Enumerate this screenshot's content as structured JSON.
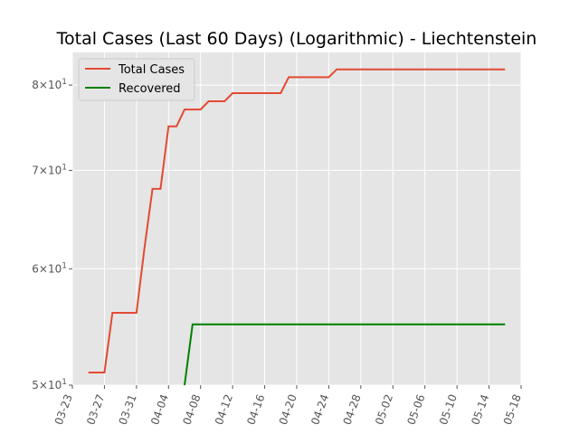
{
  "chart_data": {
    "type": "line",
    "title": "Total Cases (Last 60 Days) (Logarithmic) - Liechtenstein",
    "xlabel": "",
    "ylabel": "",
    "y_scale": "log",
    "ylim": [
      50,
      84.2
    ],
    "xlim": [
      "2020-03-23",
      "2020-05-18"
    ],
    "x_ticks": [
      "03-23",
      "03-27",
      "03-31",
      "04-04",
      "04-08",
      "04-12",
      "04-16",
      "04-20",
      "04-24",
      "04-28",
      "05-02",
      "05-06",
      "05-10",
      "05-14",
      "05-18"
    ],
    "y_ticks": [
      {
        "value": 50,
        "mantissa": "5",
        "base": "10",
        "exp": "1"
      },
      {
        "value": 60,
        "mantissa": "6",
        "base": "10",
        "exp": "1"
      },
      {
        "value": 70,
        "mantissa": "7",
        "base": "10",
        "exp": "1"
      },
      {
        "value": 80,
        "mantissa": "8",
        "base": "10",
        "exp": "1"
      }
    ],
    "grid": true,
    "legend_position": "top-left",
    "background": "#e5e5e5",
    "series": [
      {
        "name": "Total Cases",
        "color": "#e24a33",
        "points": [
          [
            "2020-03-25",
            51
          ],
          [
            "2020-03-26",
            51
          ],
          [
            "2020-03-27",
            51
          ],
          [
            "2020-03-28",
            56
          ],
          [
            "2020-03-29",
            56
          ],
          [
            "2020-03-30",
            56
          ],
          [
            "2020-03-31",
            56
          ],
          [
            "2020-04-01",
            62
          ],
          [
            "2020-04-02",
            68
          ],
          [
            "2020-04-03",
            68
          ],
          [
            "2020-04-04",
            75
          ],
          [
            "2020-04-05",
            75
          ],
          [
            "2020-04-06",
            77
          ],
          [
            "2020-04-07",
            77
          ],
          [
            "2020-04-08",
            77
          ],
          [
            "2020-04-09",
            78
          ],
          [
            "2020-04-10",
            78
          ],
          [
            "2020-04-11",
            78
          ],
          [
            "2020-04-12",
            79
          ],
          [
            "2020-04-13",
            79
          ],
          [
            "2020-04-14",
            79
          ],
          [
            "2020-04-15",
            79
          ],
          [
            "2020-04-16",
            79
          ],
          [
            "2020-04-17",
            79
          ],
          [
            "2020-04-18",
            79
          ],
          [
            "2020-04-19",
            81
          ],
          [
            "2020-04-20",
            81
          ],
          [
            "2020-04-21",
            81
          ],
          [
            "2020-04-22",
            81
          ],
          [
            "2020-04-23",
            81
          ],
          [
            "2020-04-24",
            81
          ],
          [
            "2020-04-25",
            82
          ],
          [
            "2020-04-26",
            82
          ],
          [
            "2020-04-27",
            82
          ],
          [
            "2020-04-28",
            82
          ],
          [
            "2020-04-29",
            82
          ],
          [
            "2020-04-30",
            82
          ],
          [
            "2020-05-01",
            82
          ],
          [
            "2020-05-02",
            82
          ],
          [
            "2020-05-03",
            82
          ],
          [
            "2020-05-04",
            82
          ],
          [
            "2020-05-05",
            82
          ],
          [
            "2020-05-06",
            82
          ],
          [
            "2020-05-07",
            82
          ],
          [
            "2020-05-08",
            82
          ],
          [
            "2020-05-09",
            82
          ],
          [
            "2020-05-10",
            82
          ],
          [
            "2020-05-11",
            82
          ],
          [
            "2020-05-12",
            82
          ],
          [
            "2020-05-13",
            82
          ],
          [
            "2020-05-14",
            82
          ],
          [
            "2020-05-15",
            82
          ],
          [
            "2020-05-16",
            82
          ]
        ]
      },
      {
        "name": "Recovered",
        "color": "#008000",
        "points": [
          [
            "2020-04-06",
            50
          ],
          [
            "2020-04-07",
            55
          ],
          [
            "2020-04-08",
            55
          ],
          [
            "2020-04-09",
            55
          ],
          [
            "2020-04-10",
            55
          ],
          [
            "2020-04-11",
            55
          ],
          [
            "2020-04-12",
            55
          ],
          [
            "2020-04-13",
            55
          ],
          [
            "2020-04-14",
            55
          ],
          [
            "2020-04-15",
            55
          ],
          [
            "2020-04-16",
            55
          ],
          [
            "2020-04-17",
            55
          ],
          [
            "2020-04-18",
            55
          ],
          [
            "2020-04-19",
            55
          ],
          [
            "2020-04-20",
            55
          ],
          [
            "2020-04-21",
            55
          ],
          [
            "2020-04-22",
            55
          ],
          [
            "2020-04-23",
            55
          ],
          [
            "2020-04-24",
            55
          ],
          [
            "2020-04-25",
            55
          ],
          [
            "2020-04-26",
            55
          ],
          [
            "2020-04-27",
            55
          ],
          [
            "2020-04-28",
            55
          ],
          [
            "2020-04-29",
            55
          ],
          [
            "2020-04-30",
            55
          ],
          [
            "2020-05-01",
            55
          ],
          [
            "2020-05-02",
            55
          ],
          [
            "2020-05-03",
            55
          ],
          [
            "2020-05-04",
            55
          ],
          [
            "2020-05-05",
            55
          ],
          [
            "2020-05-06",
            55
          ],
          [
            "2020-05-07",
            55
          ],
          [
            "2020-05-08",
            55
          ],
          [
            "2020-05-09",
            55
          ],
          [
            "2020-05-10",
            55
          ],
          [
            "2020-05-11",
            55
          ],
          [
            "2020-05-12",
            55
          ],
          [
            "2020-05-13",
            55
          ],
          [
            "2020-05-14",
            55
          ],
          [
            "2020-05-15",
            55
          ],
          [
            "2020-05-16",
            55
          ]
        ]
      }
    ]
  }
}
